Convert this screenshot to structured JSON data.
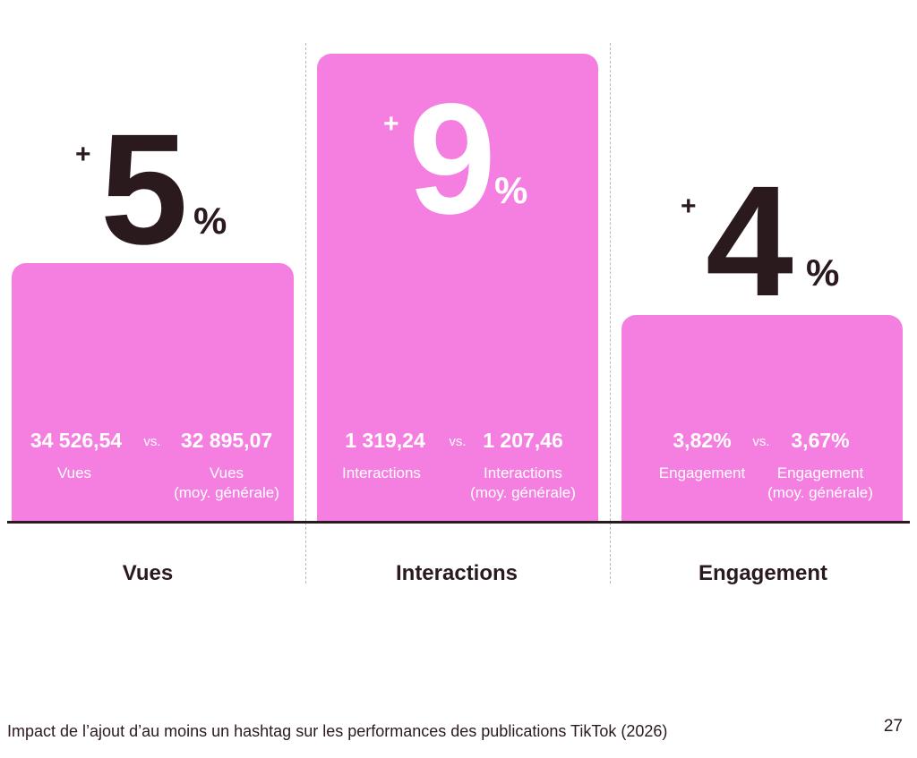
{
  "chart_data": {
    "type": "bar",
    "categories": [
      "Vues",
      "Interactions",
      "Engagement"
    ],
    "values": [
      5,
      9,
      4
    ],
    "value_prefix": "+",
    "value_suffix": "%",
    "comparisons": [
      {
        "hashtag_value": "34 526,54",
        "hashtag_label": "Vues",
        "avg_value": "32 895,07",
        "avg_label_line1": "Vues",
        "avg_label_line2": "(moy. générale)"
      },
      {
        "hashtag_value": "1 319,24",
        "hashtag_label": "Interactions",
        "avg_value": "1 207,46",
        "avg_label_line1": "Interactions",
        "avg_label_line2": "(moy. générale)"
      },
      {
        "hashtag_value": "3,82%",
        "hashtag_label": "Engagement",
        "avg_value": "3,67%",
        "avg_label_line1": "Engagement",
        "avg_label_line2": "(moy. générale)"
      }
    ],
    "vs_text": "vs.",
    "title": "",
    "xlabel": "",
    "ylabel": ""
  },
  "caption": "Impact de l’ajout d’au moins un hashtag sur les performances des publications TikTok (2026)",
  "page_number": "27",
  "colors": {
    "bar": "#f57fe1",
    "text_dark": "#2a1a1d",
    "text_light": "#ffffff",
    "divider": "#b9b9b9"
  }
}
